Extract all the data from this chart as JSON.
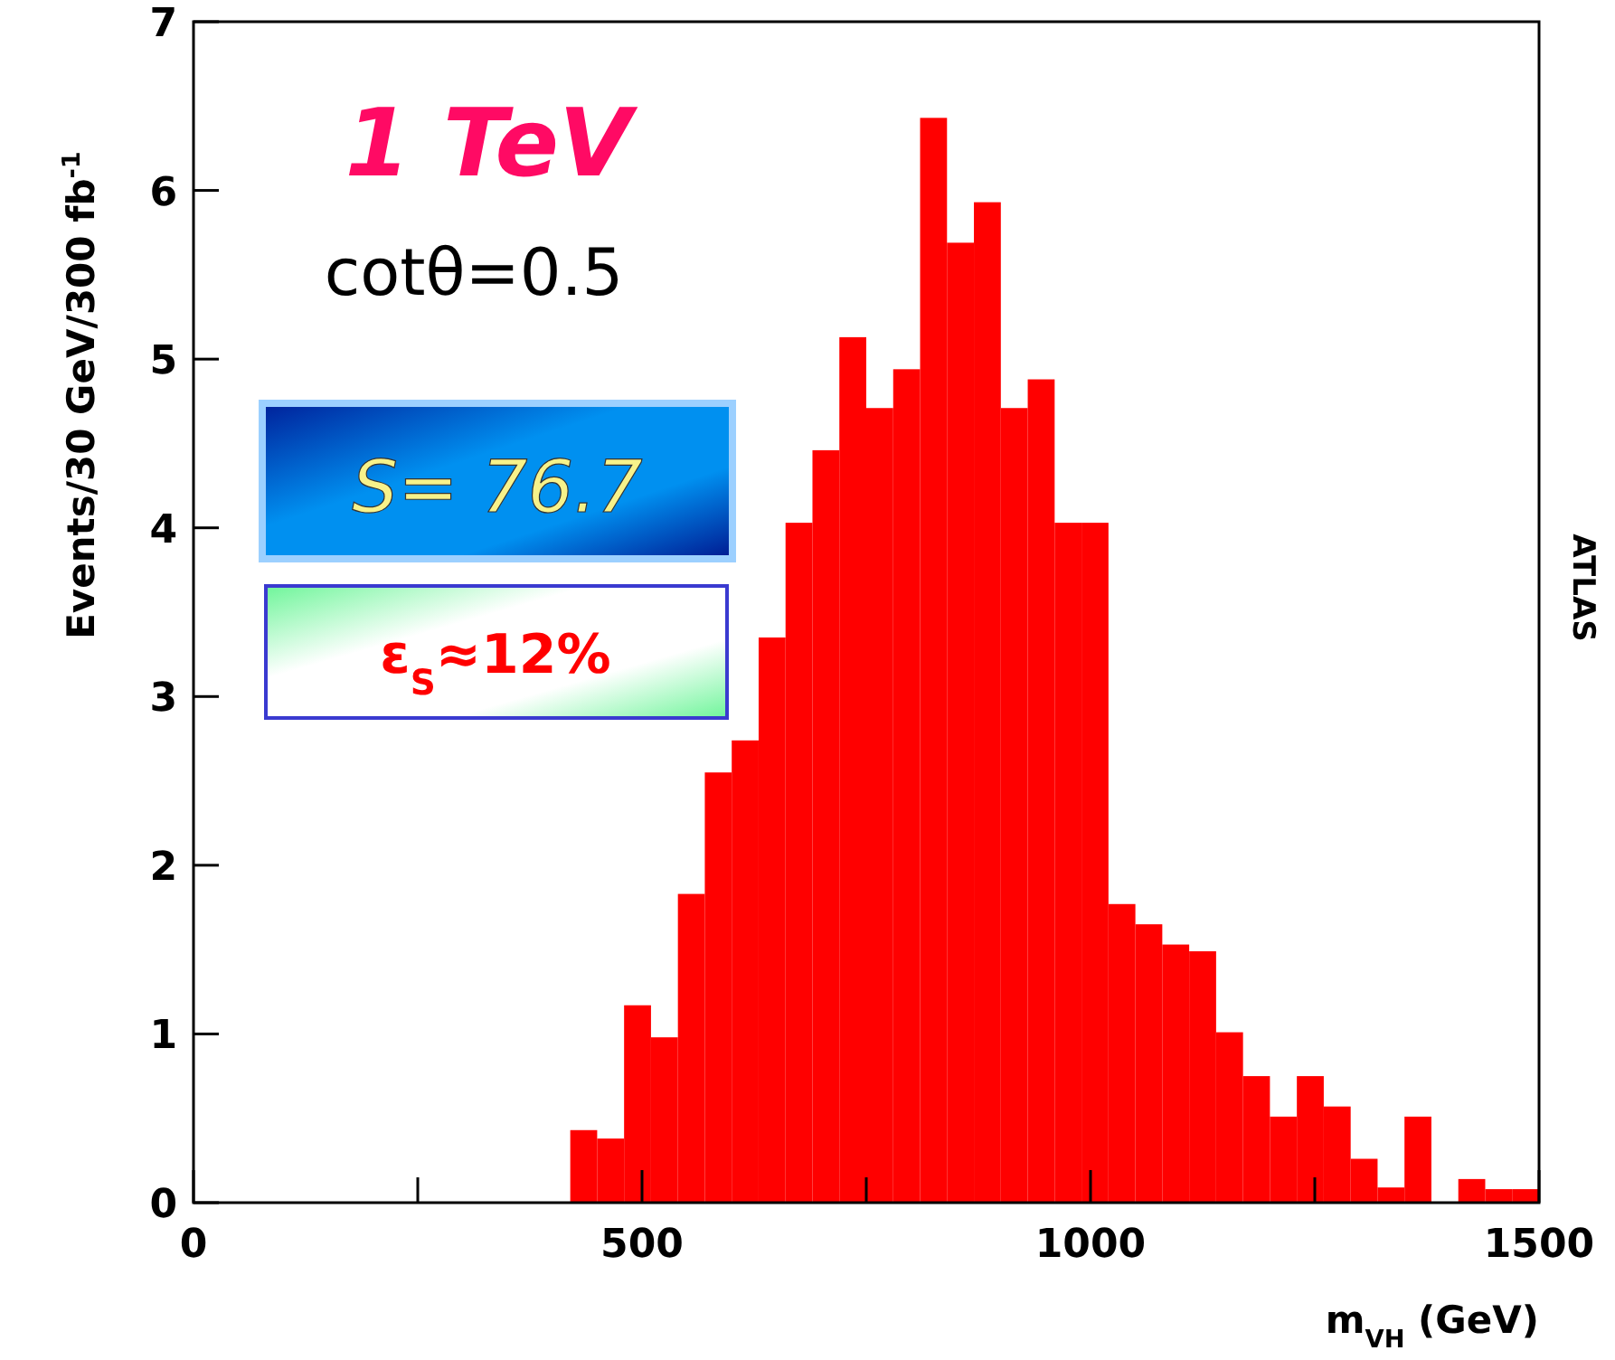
{
  "chart_data": {
    "type": "histogram",
    "xlabel": "m$_{VH}$ (GeV)",
    "ylabel": "Events/30 GeV/300 fb$^{-1}$",
    "bins": [
      420,
      450,
      480,
      510,
      540,
      570,
      600,
      630,
      660,
      690,
      720,
      750,
      780,
      810,
      840,
      870,
      900,
      930,
      960,
      990,
      1020,
      1050,
      1080,
      1110,
      1140,
      1170,
      1200,
      1230,
      1260,
      1290,
      1320,
      1350,
      1380,
      1410,
      1440,
      1470,
      1500
    ],
    "values": [
      0.43,
      0.38,
      1.17,
      0.98,
      1.83,
      2.55,
      2.74,
      3.35,
      4.03,
      4.46,
      5.13,
      4.71,
      4.94,
      6.43,
      5.69,
      5.93,
      4.71,
      4.88,
      4.03,
      4.03,
      1.77,
      1.65,
      1.53,
      1.49,
      1.01,
      0.75,
      0.51,
      0.75,
      0.57,
      0.26,
      0.09,
      0.51,
      0,
      0.14,
      0.08,
      0.08
    ],
    "color": "#ff0000",
    "xlim": [
      0,
      1500
    ],
    "xticks": [
      0,
      {
        "value": 250,
        "label": null
      },
      500,
      {
        "value": 750,
        "label": null
      },
      1000,
      {
        "value": 1250,
        "label": null
      },
      1500
    ],
    "ylim": [
      0,
      7
    ],
    "yticks": [
      0,
      1,
      2,
      3,
      4,
      5,
      6,
      7
    ],
    "annotations": [
      "1 TeV",
      "cotθ=0.5",
      "S= 76.7",
      "ε$_{S}$≈12%",
      "ATLAS"
    ]
  }
}
